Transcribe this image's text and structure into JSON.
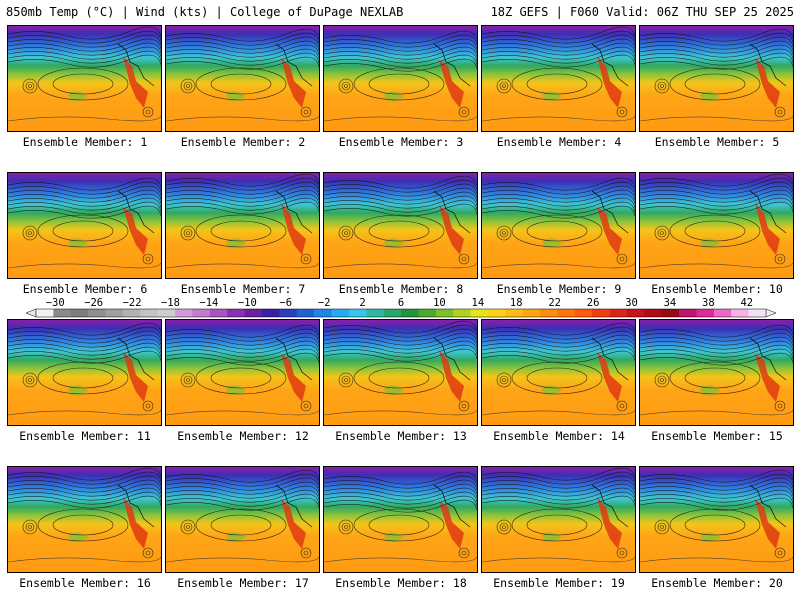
{
  "header": {
    "left": "850mb Temp (°C) | Wind (kts) | College of DuPage NEXLAB",
    "right": "18Z GEFS | F060 Valid: 06Z THU SEP 25 2025"
  },
  "panel_caption_prefix": "Ensemble Member:",
  "members": [
    "1",
    "2",
    "3",
    "4",
    "5",
    "6",
    "7",
    "8",
    "9",
    "10",
    "11",
    "12",
    "13",
    "14",
    "15",
    "16",
    "17",
    "18",
    "19",
    "20"
  ],
  "colorbar": {
    "tick_labels": [
      "−30",
      "−26",
      "−22",
      "−18",
      "−14",
      "−10",
      "−6",
      "−2",
      "2",
      "6",
      "10",
      "14",
      "18",
      "22",
      "26",
      "30",
      "34",
      "38",
      "42"
    ],
    "colors": [
      "#f2f2f2",
      "#8a8a8a",
      "#7e7e7e",
      "#8f8f8f",
      "#a0a0a0",
      "#b2b2b2",
      "#c4c4c4",
      "#cfcfcf",
      "#d29bd8",
      "#c27ccd",
      "#a855c2",
      "#8a2fb0",
      "#6b1ea0",
      "#3a1fa6",
      "#2a3fbf",
      "#1f62d6",
      "#1f86e6",
      "#27aaf0",
      "#35c5ee",
      "#2fb9a4",
      "#24a86e",
      "#1f953f",
      "#4aa930",
      "#7fbf2a",
      "#b5d020",
      "#e6e41a",
      "#ffd21a",
      "#ffbd14",
      "#ffa50f",
      "#ff8c0a",
      "#ff7308",
      "#ff5a06",
      "#ef3e10",
      "#dc2318",
      "#c8121c",
      "#b00a1a",
      "#960a14",
      "#c0146e",
      "#dc2a9a",
      "#ee66c8",
      "#f7b2e6",
      "#f1e2f4"
    ]
  }
}
